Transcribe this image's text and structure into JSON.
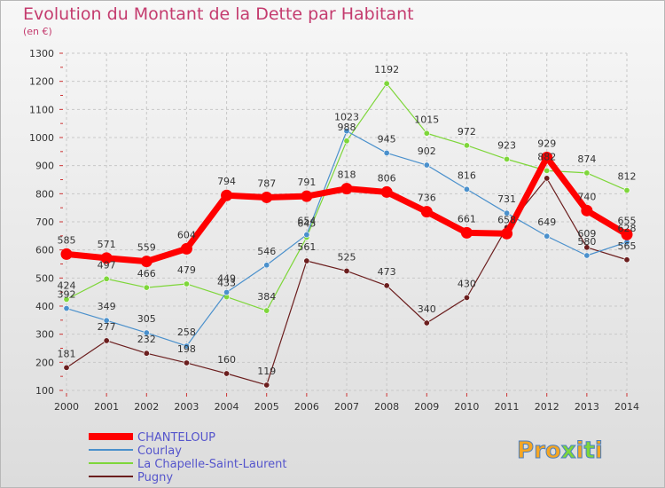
{
  "chart_data": {
    "type": "line",
    "title": "Evolution du Montant de la Dette par Habitant",
    "subtitle": "(en €)",
    "x": [
      "2000",
      "2001",
      "2002",
      "2003",
      "2004",
      "2005",
      "2006",
      "2007",
      "2008",
      "2009",
      "2010",
      "2011",
      "2012",
      "2013",
      "2014"
    ],
    "ylim": [
      100,
      1300
    ],
    "yticks": [
      "100",
      "200",
      "300",
      "400",
      "500",
      "600",
      "700",
      "800",
      "900",
      "1000",
      "1100",
      "1200",
      "1300"
    ],
    "grid": true,
    "legend_position": "bottom-left",
    "series": [
      {
        "name": "CHANTELOUP",
        "color": "#ff0000",
        "values": [
          585,
          571,
          559,
          604,
          794,
          787,
          791,
          818,
          806,
          736,
          661,
          658,
          929,
          740,
          655
        ],
        "labels": [
          "585",
          "571",
          "559",
          "604",
          "794",
          "787",
          "791",
          "818",
          "806",
          "736",
          "661",
          "658",
          "929",
          "740",
          "655"
        ]
      },
      {
        "name": "Courlay",
        "color": "#4a90cc",
        "values": [
          392,
          349,
          305,
          258,
          449,
          546,
          654,
          1023,
          945,
          902,
          816,
          731,
          649,
          580,
          628
        ],
        "labels": [
          "392",
          "349",
          "305",
          "258",
          "449",
          "546",
          "654",
          "1023",
          "945",
          "902",
          "816",
          "731",
          "649",
          "580",
          "628"
        ]
      },
      {
        "name": "La Chapelle-Saint-Laurent",
        "color": "#7ed63a",
        "values": [
          424,
          497,
          466,
          479,
          433,
          384,
          645,
          988,
          1192,
          1015,
          972,
          923,
          882,
          874,
          812
        ],
        "labels": [
          "424",
          "497",
          "466",
          "479",
          "433",
          "384",
          "645",
          "988",
          "1192",
          "1015",
          "972",
          "923",
          "882",
          "874",
          "812"
        ]
      },
      {
        "name": "Pugny",
        "color": "#6b1e1e",
        "values": [
          181,
          277,
          232,
          198,
          160,
          119,
          561,
          525,
          473,
          340,
          430,
          680,
          855,
          609,
          565
        ],
        "labels": [
          "181",
          "277",
          "232",
          "198",
          "160",
          "119",
          "561",
          "525",
          "473",
          "340",
          "430",
          "",
          "",
          "609",
          "565"
        ]
      }
    ]
  },
  "brand": {
    "name": "Proxiti"
  }
}
